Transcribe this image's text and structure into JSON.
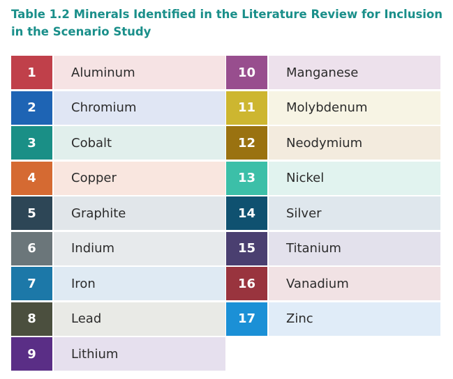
{
  "title": "Table 1.2 Minerals Identified in the Literature Review for Inclusion in the Scenario Study",
  "left_column": [
    {
      "number": "1",
      "name": "Aluminum",
      "color": "#c0404a",
      "bg": "#f6e3e4"
    },
    {
      "number": "2",
      "name": "Chromium",
      "color": "#1e64b4",
      "bg": "#e0e6f4"
    },
    {
      "number": "3",
      "name": "Cobalt",
      "color": "#1a8f86",
      "bg": "#e1efec"
    },
    {
      "number": "4",
      "name": "Copper",
      "color": "#d56a32",
      "bg": "#f9e6df"
    },
    {
      "number": "5",
      "name": "Graphite",
      "color": "#2d4656",
      "bg": "#e1e6ea"
    },
    {
      "number": "6",
      "name": "Indium",
      "color": "#6b767a",
      "bg": "#e7eaec"
    },
    {
      "number": "7",
      "name": "Iron",
      "color": "#1c78a8",
      "bg": "#dfeaf3"
    },
    {
      "number": "8",
      "name": "Lead",
      "color": "#4b4f3e",
      "bg": "#e9eae6"
    },
    {
      "number": "9",
      "name": "Lithium",
      "color": "#5a2e86",
      "bg": "#e6e0ee"
    }
  ],
  "right_column": [
    {
      "number": "10",
      "name": "Manganese",
      "color": "#984e8e",
      "bg": "#ede1ec"
    },
    {
      "number": "11",
      "name": "Molybdenum",
      "color": "#cdb630",
      "bg": "#f7f4e4"
    },
    {
      "number": "12",
      "name": "Neodymium",
      "color": "#9a7210",
      "bg": "#f3ebde"
    },
    {
      "number": "13",
      "name": "Nickel",
      "color": "#3cbfa8",
      "bg": "#e1f3ef"
    },
    {
      "number": "14",
      "name": "Silver",
      "color": "#0f5170",
      "bg": "#dfe7ed"
    },
    {
      "number": "15",
      "name": "Titanium",
      "color": "#4a3f70",
      "bg": "#e3e1ec"
    },
    {
      "number": "16",
      "name": "Vanadium",
      "color": "#99343e",
      "bg": "#f1e2e4"
    },
    {
      "number": "17",
      "name": "Zinc",
      "color": "#1b90d6",
      "bg": "#e0ecf8"
    }
  ]
}
